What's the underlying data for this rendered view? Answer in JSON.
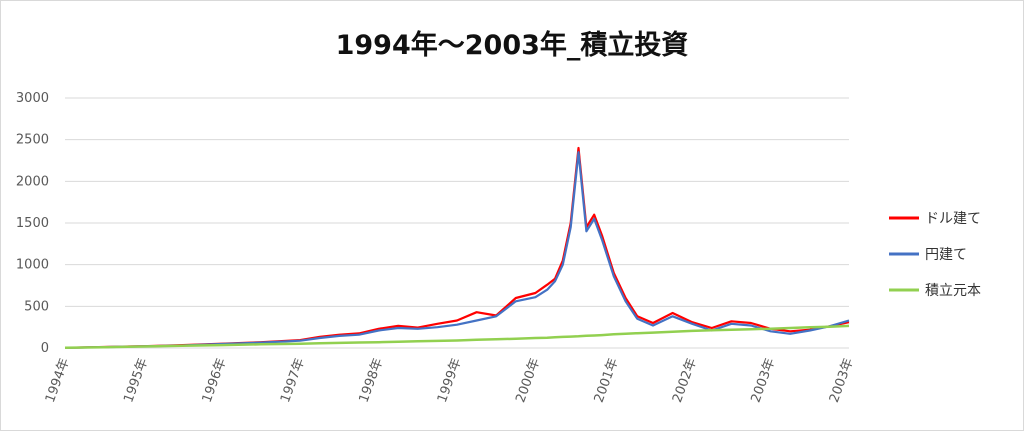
{
  "chart_data": {
    "type": "line",
    "title": "1994年～2003年_積立投資",
    "xlabel": "",
    "ylabel": "",
    "ylim": [
      0,
      3000
    ],
    "yticks": [
      0,
      500,
      1000,
      1500,
      2000,
      2500,
      3000
    ],
    "x_tick_labels": [
      "1994年",
      "1995年",
      "1996年",
      "1997年",
      "1998年",
      "1999年",
      "2000年",
      "2001年",
      "2002年",
      "2003年",
      "2003年"
    ],
    "grid": true,
    "legend_position": "right",
    "x": [
      1994.0,
      1994.5,
      1995.0,
      1995.5,
      1996.0,
      1996.5,
      1997.0,
      1997.25,
      1997.5,
      1997.75,
      1998.0,
      1998.25,
      1998.5,
      1998.75,
      1999.0,
      1999.25,
      1999.5,
      1999.75,
      2000.0,
      2000.15,
      2000.25,
      2000.35,
      2000.45,
      2000.55,
      2000.65,
      2000.75,
      2000.85,
      2001.0,
      2001.15,
      2001.3,
      2001.5,
      2001.75,
      2002.0,
      2002.25,
      2002.5,
      2002.75,
      2003.0,
      2003.25,
      2003.5,
      2003.75,
      2004.0
    ],
    "series": [
      {
        "name": "ドル建て",
        "color": "#ff0000",
        "values": [
          3,
          12,
          22,
          35,
          52,
          70,
          95,
          135,
          160,
          175,
          230,
          265,
          245,
          290,
          330,
          430,
          390,
          600,
          660,
          760,
          830,
          1050,
          1500,
          2400,
          1450,
          1600,
          1350,
          900,
          600,
          380,
          300,
          420,
          310,
          240,
          320,
          300,
          230,
          200,
          220,
          260,
          310
        ]
      },
      {
        "name": "円建て",
        "color": "#4472c4",
        "values": [
          3,
          11,
          20,
          30,
          48,
          65,
          88,
          120,
          145,
          160,
          210,
          240,
          230,
          250,
          280,
          330,
          380,
          560,
          610,
          700,
          800,
          1000,
          1450,
          2350,
          1400,
          1550,
          1300,
          860,
          560,
          350,
          270,
          380,
          290,
          210,
          290,
          270,
          200,
          170,
          210,
          260,
          330
        ]
      },
      {
        "name": "積立元本",
        "color": "#92d050",
        "values": [
          3,
          10,
          18,
          26,
          35,
          44,
          52,
          57,
          61,
          66,
          70,
          75,
          80,
          85,
          90,
          98,
          105,
          112,
          120,
          124,
          128,
          133,
          137,
          141,
          146,
          150,
          155,
          165,
          172,
          178,
          185,
          195,
          205,
          212,
          218,
          225,
          232,
          240,
          248,
          256,
          265
        ]
      }
    ]
  }
}
